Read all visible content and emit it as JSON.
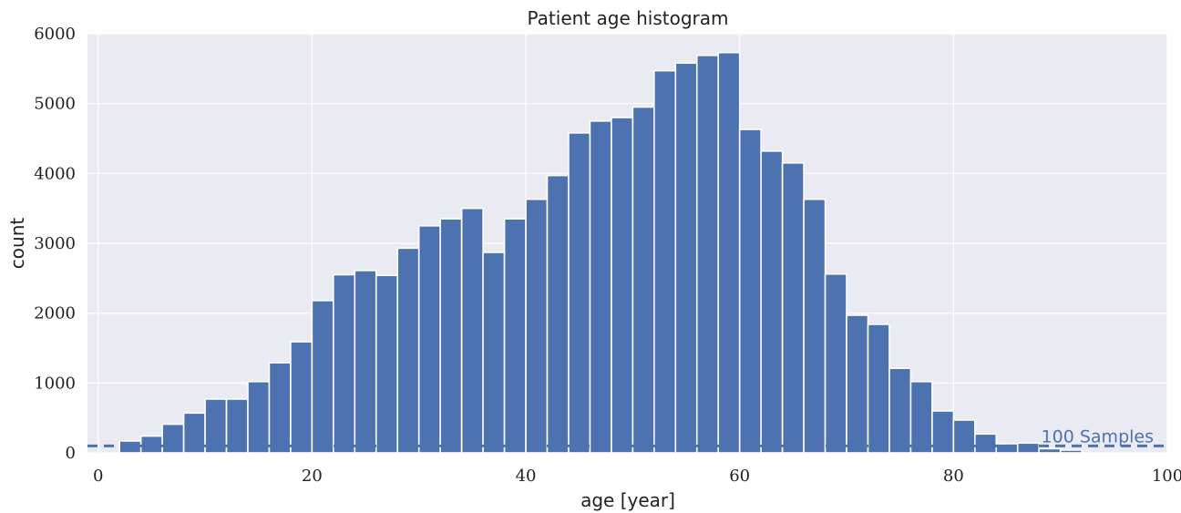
{
  "chart_data": {
    "type": "bar",
    "title": "Patient age histogram",
    "xlabel": "age [year]",
    "ylabel": "count",
    "xlim": [
      -1,
      100
    ],
    "ylim": [
      0,
      6000
    ],
    "xticks": [
      0,
      20,
      40,
      60,
      80,
      100
    ],
    "yticks": [
      0,
      1000,
      2000,
      3000,
      4000,
      5000,
      6000
    ],
    "bin_width": 2,
    "bins_start": [
      2,
      4,
      6,
      8,
      10,
      12,
      14,
      16,
      18,
      20,
      22,
      24,
      26,
      28,
      30,
      32,
      34,
      36,
      38,
      40,
      42,
      44,
      46,
      48,
      50,
      52,
      54,
      56,
      58,
      60,
      62,
      64,
      66,
      68,
      70,
      72,
      74,
      76,
      78,
      80,
      82,
      84,
      86,
      88,
      90
    ],
    "values": [
      170,
      240,
      410,
      570,
      770,
      770,
      1020,
      1290,
      1590,
      2180,
      2550,
      2610,
      2540,
      2930,
      3250,
      3350,
      3500,
      2870,
      3350,
      3630,
      3970,
      4580,
      4750,
      4800,
      4950,
      5470,
      5580,
      5690,
      5730,
      4630,
      4320,
      4150,
      3630,
      2560,
      1970,
      1840,
      1210,
      1020,
      600,
      470,
      270,
      130,
      140,
      60,
      40
    ],
    "bar_color": "#4c72b0",
    "threshold_line": {
      "value": 100,
      "label": "100 Samples",
      "style": "dashed"
    },
    "grid": true
  }
}
